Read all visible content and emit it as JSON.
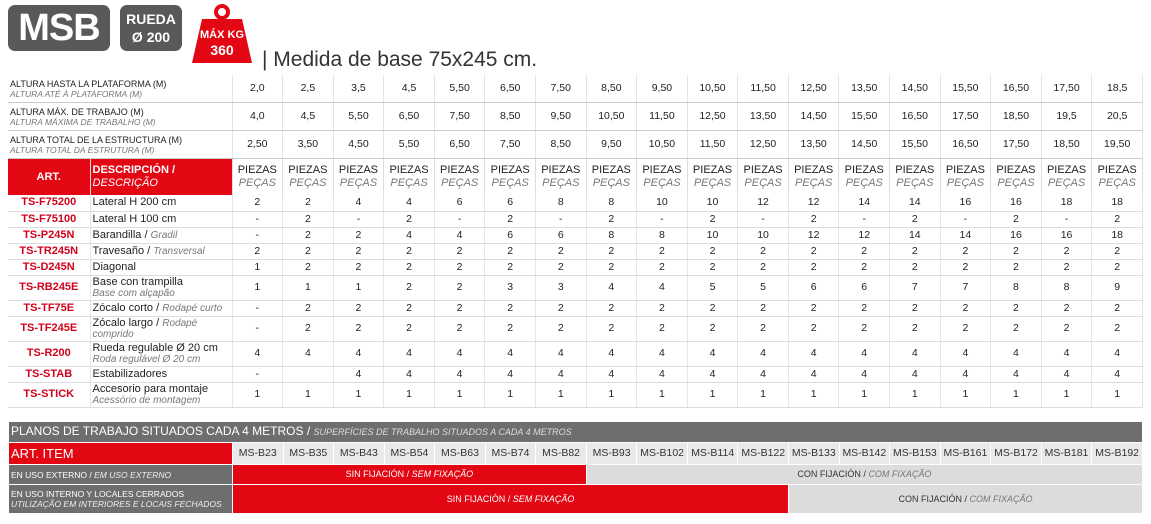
{
  "header": {
    "badge": "MSB",
    "wheel": [
      "RUEDA",
      "Ø 200"
    ],
    "max_kg": [
      "MÁX KG",
      "360"
    ],
    "base": "| Medida de base 75x245 cm."
  },
  "heights": [
    {
      "label": "ALTURA HASTA LA PLATAFORMA (M)",
      "label_pt": "ALTURA ATÉ À PLATAFORMA (M)",
      "values": [
        "2,0",
        "2,5",
        "3,5",
        "4,5",
        "5,50",
        "6,50",
        "7,50",
        "8,50",
        "9,50",
        "10,50",
        "11,50",
        "12,50",
        "13,50",
        "14,50",
        "15,50",
        "16,50",
        "17,50",
        "18,5"
      ]
    },
    {
      "label": "ALTURA MÁX. DE TRABAJO (M)",
      "label_pt": "ALTURA MÁXIMA DE TRABALHO (M)",
      "values": [
        "4,0",
        "4,5",
        "5,50",
        "6,50",
        "7,50",
        "8,50",
        "9,50",
        "10,50",
        "11,50",
        "12,50",
        "13,50",
        "14,50",
        "15,50",
        "16,50",
        "17,50",
        "18,50",
        "19,5",
        "20,5"
      ]
    },
    {
      "label": "ALTURA TOTAL DE LA ESTRUCTURA (M)",
      "label_pt": "ALTURA TOTAL DA ESTRUTURA (M)",
      "values": [
        "2,50",
        "3,50",
        "4,50",
        "5,50",
        "6,50",
        "7,50",
        "8,50",
        "9,50",
        "10,50",
        "11,50",
        "12,50",
        "13,50",
        "14,50",
        "15,50",
        "16,50",
        "17,50",
        "18,50",
        "19,50"
      ]
    }
  ],
  "columns_header": {
    "art": "ART.",
    "desc": "DESCRIPCIÓN /",
    "desc_pt": "DESCRIÇÃO",
    "pieces": "PIEZAS",
    "pieces_pt": "PEÇAS"
  },
  "items": [
    {
      "code": "TS-F75200",
      "desc": "Lateral H 200 cm",
      "values": [
        2,
        2,
        4,
        4,
        6,
        6,
        8,
        8,
        10,
        10,
        12,
        12,
        14,
        14,
        16,
        16,
        18,
        18
      ]
    },
    {
      "code": "TS-F75100",
      "desc": "Lateral H 100 cm",
      "values": [
        "-",
        2,
        "-",
        2,
        "-",
        2,
        "-",
        2,
        "-",
        2,
        "-",
        2,
        "-",
        2,
        "-",
        2,
        "-",
        2
      ]
    },
    {
      "code": "TS-P245N",
      "desc": "Barandilla /",
      "desc_pt": "Gradil",
      "values": [
        "-",
        2,
        2,
        4,
        4,
        6,
        6,
        8,
        8,
        10,
        10,
        12,
        12,
        14,
        14,
        16,
        16,
        18
      ]
    },
    {
      "code": "TS-TR245N",
      "desc": "Travesaño /",
      "desc_pt": "Transversal",
      "values": [
        2,
        2,
        2,
        2,
        2,
        2,
        2,
        2,
        2,
        2,
        2,
        2,
        2,
        2,
        2,
        2,
        2,
        2
      ]
    },
    {
      "code": "TS-D245N",
      "desc": "Diagonal",
      "values": [
        1,
        2,
        2,
        2,
        2,
        2,
        2,
        2,
        2,
        2,
        2,
        2,
        2,
        2,
        2,
        2,
        2,
        2
      ]
    },
    {
      "code": "TS-RB245E",
      "desc": "Base con trampilla",
      "desc_pt": "Base com alçapão",
      "values": [
        1,
        1,
        1,
        2,
        2,
        3,
        3,
        4,
        4,
        5,
        5,
        6,
        6,
        7,
        7,
        8,
        8,
        9
      ]
    },
    {
      "code": "TS-TF75E",
      "desc": "Zócalo corto /",
      "desc_pt": "Rodapé curto",
      "values": [
        "-",
        2,
        2,
        2,
        2,
        2,
        2,
        2,
        2,
        2,
        2,
        2,
        2,
        2,
        2,
        2,
        2,
        2
      ]
    },
    {
      "code": "TS-TF245E",
      "desc": "Zócalo largo /",
      "desc_pt": "Rodapé comprido",
      "values": [
        "-",
        2,
        2,
        2,
        2,
        2,
        2,
        2,
        2,
        2,
        2,
        2,
        2,
        2,
        2,
        2,
        2,
        2
      ]
    },
    {
      "code": "TS-R200",
      "desc": "Rueda regulable Ø 20 cm",
      "desc_pt": "Roda regulável Ø 20 cm",
      "values": [
        4,
        4,
        4,
        4,
        4,
        4,
        4,
        4,
        4,
        4,
        4,
        4,
        4,
        4,
        4,
        4,
        4,
        4
      ]
    },
    {
      "code": "TS-STAB",
      "desc": "Estabilizadores",
      "values": [
        "-",
        null,
        4,
        4,
        4,
        4,
        4,
        4,
        4,
        4,
        4,
        4,
        4,
        4,
        4,
        4,
        4,
        4
      ]
    },
    {
      "code": "TS-STICK",
      "desc": "Accesorio para montaje",
      "desc_pt": "Acessório de montagem",
      "values": [
        1,
        1,
        1,
        1,
        1,
        1,
        1,
        1,
        1,
        1,
        1,
        1,
        1,
        1,
        1,
        1,
        1,
        1
      ]
    }
  ],
  "platforms": {
    "title": "PLANOS DE TRABAJO SITUADOS CADA 4 METROS /",
    "title_pt": "SUPERFÍCIES DE TRABALHO SITUADOS A CADA 4 METROS",
    "art_label": "ART. ITEM",
    "codes": [
      "MS-B23",
      "MS-B35",
      "MS-B43",
      "MS-B54",
      "MS-B63",
      "MS-B74",
      "MS-B82",
      "MS-B93",
      "MS-B102",
      "MS-B114",
      "MS-B122",
      "MS-B133",
      "MS-B142",
      "MS-B153",
      "MS-B161",
      "MS-B172",
      "MS-B181",
      "MS-B192"
    ]
  },
  "usage": [
    {
      "label": "EN USO EXTERNO /",
      "label_pt": "EM USO EXTERNO",
      "without": "SIN FIJACIÓN /",
      "without_pt": "SEM FIXAÇÃO",
      "with": "CON FIJACIÓN /",
      "with_pt": "COM FIXAÇÃO"
    },
    {
      "label": "EN USO INTERNO Y LOCALES CERRADOS",
      "label_pt": "UTILIZAÇÃO EM INTERIORES E LOCAIS FECHADOS",
      "without": "SIN FIJACIÓN /",
      "without_pt": "SEM FIXAÇÃO",
      "with": "CON FIJACIÓN /",
      "with_pt": "COM FIXAÇÃO"
    }
  ]
}
